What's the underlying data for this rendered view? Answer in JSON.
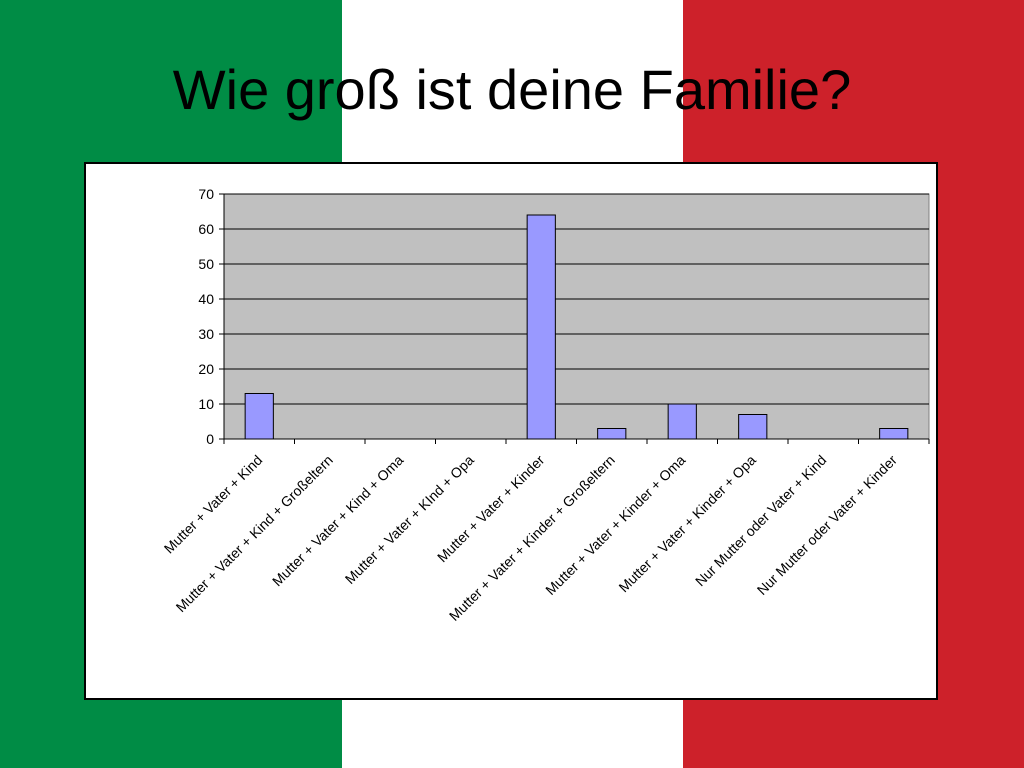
{
  "slide": {
    "title": "Wie groß ist deine Familie?",
    "colors": {
      "green": "#008c45",
      "white": "#ffffff",
      "red": "#cd212a"
    }
  },
  "chart_data": {
    "type": "bar",
    "title": "",
    "xlabel": "",
    "ylabel": "",
    "categories": [
      "Mutter + Vater + Kind",
      "Mutter + Vater + Kind + Großeltern",
      "Mutter + Vater + Kind + Oma",
      "Mutter + Vater + KInd + Opa",
      "Mutter + Vater + Kinder",
      "Mutter + Vater + Kinder + Großeltern",
      "Mutter + Vater + Kinder + Oma",
      "Mutter + Vater + Kinder + Opa",
      "Nur Mutter oder Vater + Kind",
      "Nur Mutter oder Vater + Kinder"
    ],
    "values": [
      13,
      0,
      0,
      0,
      64,
      3,
      10,
      7,
      0,
      3
    ],
    "ylim": [
      0,
      70
    ],
    "yticks": [
      "0",
      "10",
      "20",
      "30",
      "40",
      "50",
      "60",
      "70"
    ],
    "grid": true,
    "legend": "none",
    "plot_background": "#c0c0c0",
    "bar_color": "#9999ff"
  }
}
